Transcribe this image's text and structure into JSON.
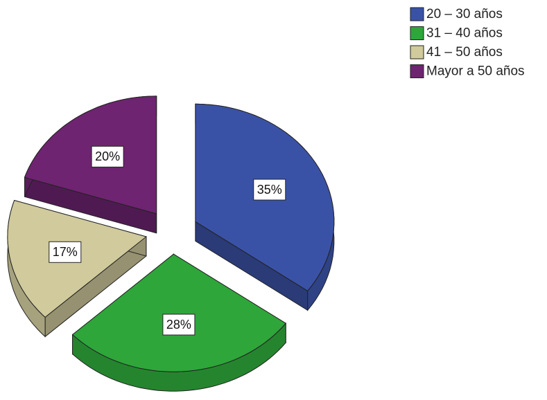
{
  "chart_data": {
    "type": "pie",
    "categories": [
      "20 – 30 años",
      "31 – 40 años",
      "41 – 50 años",
      "Mayor a 50 años"
    ],
    "values": [
      35,
      28,
      17,
      20
    ],
    "value_labels": [
      "35%",
      "28%",
      "17%",
      "20%"
    ],
    "colors": [
      "#3a52a6",
      "#2ea63a",
      "#d0ca9c",
      "#6e2470"
    ],
    "legend": "top-right"
  }
}
